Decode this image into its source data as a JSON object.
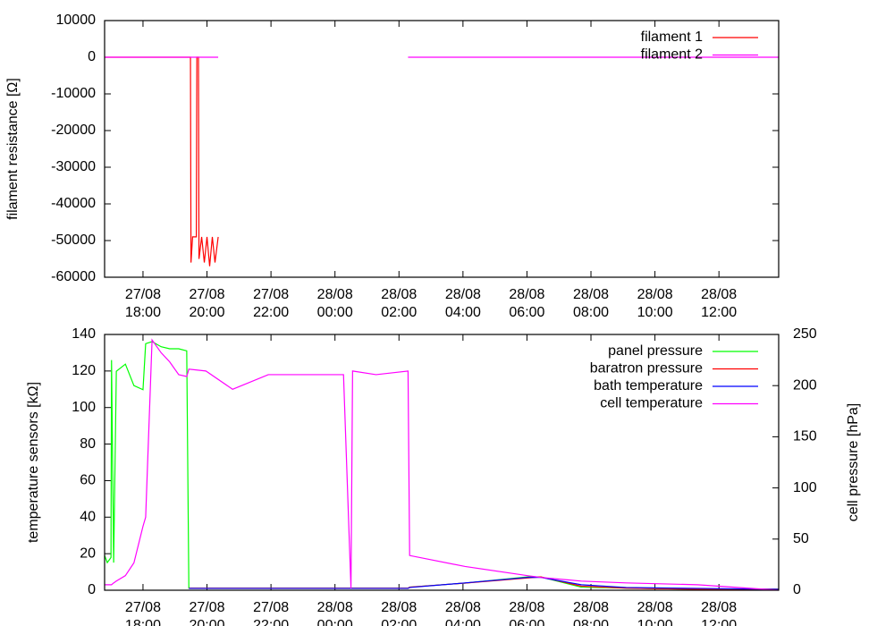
{
  "chart_data": [
    {
      "type": "line",
      "ylabel": "filament resistance [Ω]",
      "x": [
        "27/08 16:48",
        "27/08 19:29",
        "27/08 19:30",
        "27/08 19:33",
        "27/08 19:40",
        "27/08 19:41",
        "27/08 19:44",
        "27/08 19:45",
        "27/08 19:50",
        "27/08 19:55",
        "27/08 20:00",
        "27/08 20:05",
        "27/08 20:10",
        "27/08 20:15",
        "27/08 20:21",
        "28/08 00:00",
        "28/08 02:17",
        "28/08 13:52"
      ],
      "xlim": [
        "27/08 16:48",
        "28/08 13:52"
      ],
      "xticks": [
        "27/08 18:00",
        "27/08 20:00",
        "27/08 22:00",
        "28/08 00:00",
        "28/08 02:00",
        "28/08 04:00",
        "28/08 06:00",
        "28/08 08:00",
        "28/08 10:00",
        "28/08 12:00"
      ],
      "ylim": [
        -60000,
        10000
      ],
      "yticks": [
        10000,
        0,
        -10000,
        -20000,
        -30000,
        -40000,
        -50000,
        -60000
      ],
      "legend": "upper right",
      "series": [
        {
          "name": "filament 1",
          "color": "#ff0000",
          "values": [
            0,
            0,
            -56000,
            -49000,
            -49000,
            0,
            0,
            -55000,
            -49000,
            -56000,
            -49000,
            -57000,
            -49000,
            -56000,
            -49000,
            null,
            null,
            null
          ]
        },
        {
          "name": "filament 2",
          "color": "#ff00ff",
          "values": [
            0,
            0,
            0,
            0,
            0,
            0,
            0,
            0,
            0,
            0,
            0,
            0,
            0,
            0,
            0,
            null,
            0,
            0
          ]
        }
      ]
    },
    {
      "type": "line",
      "ylabel": "temperature sensors [kΩ]",
      "y2label": "cell pressure [hPa]",
      "x": [
        "27/08 16:48",
        "27/08 16:53",
        "27/08 17:00",
        "27/08 17:01",
        "27/08 17:05",
        "27/08 17:10",
        "27/08 17:27",
        "27/08 17:43",
        "27/08 18:00",
        "27/08 18:05",
        "27/08 18:17",
        "27/08 18:34",
        "27/08 18:50",
        "27/08 19:07",
        "27/08 19:22",
        "27/08 19:26",
        "27/08 19:58",
        "27/08 20:48",
        "27/08 21:55",
        "28/08 00:16",
        "28/08 00:30",
        "28/08 00:33",
        "28/08 01:17",
        "28/08 02:17",
        "28/08 02:20",
        "28/08 04:04",
        "28/08 06:01",
        "28/08 06:26",
        "28/08 07:42",
        "28/08 09:06",
        "28/08 11:20",
        "28/08 13:52"
      ],
      "xlim": [
        "27/08 16:48",
        "28/08 13:52"
      ],
      "xticks": [
        "27/08 18:00",
        "27/08 20:00",
        "27/08 22:00",
        "28/08 00:00",
        "28/08 02:00",
        "28/08 04:00",
        "28/08 06:00",
        "28/08 08:00",
        "28/08 10:00",
        "28/08 12:00"
      ],
      "ylim": [
        0,
        140
      ],
      "yticks": [
        0,
        20,
        40,
        60,
        80,
        100,
        120,
        140
      ],
      "y2lim": [
        0,
        250
      ],
      "y2ticks": [
        0,
        50,
        100,
        150,
        200,
        250
      ],
      "legend": "upper right",
      "series": [
        {
          "name": "panel pressure",
          "color": "#00ff00",
          "axis": "y2",
          "values": [
            34,
            27,
            32,
            225,
            27,
            214,
            221,
            200,
            196,
            241,
            243,
            238,
            236,
            236,
            234,
            2,
            2,
            2,
            2,
            2,
            2,
            2,
            2,
            2,
            3,
            7,
            13,
            13,
            3,
            2,
            1,
            1
          ]
        },
        {
          "name": "baratron pressure",
          "color": "#ff0000",
          "axis": "y2",
          "values": [
            null,
            null,
            null,
            null,
            null,
            null,
            null,
            null,
            null,
            null,
            null,
            null,
            null,
            null,
            null,
            2,
            2,
            2,
            2,
            2,
            2,
            2,
            2,
            2,
            3,
            7,
            12,
            13,
            4,
            2,
            1,
            1
          ]
        },
        {
          "name": "bath temperature",
          "color": "#0000ff",
          "values": [
            null,
            null,
            null,
            null,
            null,
            null,
            null,
            null,
            null,
            null,
            null,
            null,
            null,
            null,
            null,
            1,
            1,
            1,
            1,
            1,
            1,
            1,
            1,
            1,
            1.5,
            4,
            7,
            7,
            3,
            1.5,
            1,
            0.5
          ]
        },
        {
          "name": "cell temperature",
          "color": "#ff00ff",
          "values": [
            3,
            3,
            3,
            3,
            4,
            5,
            8,
            15,
            35,
            40,
            137,
            130,
            125,
            118,
            117,
            121,
            120,
            110,
            118,
            118,
            1,
            120,
            118,
            120,
            19,
            13,
            8,
            7,
            5,
            4,
            3,
            0
          ]
        }
      ]
    }
  ]
}
